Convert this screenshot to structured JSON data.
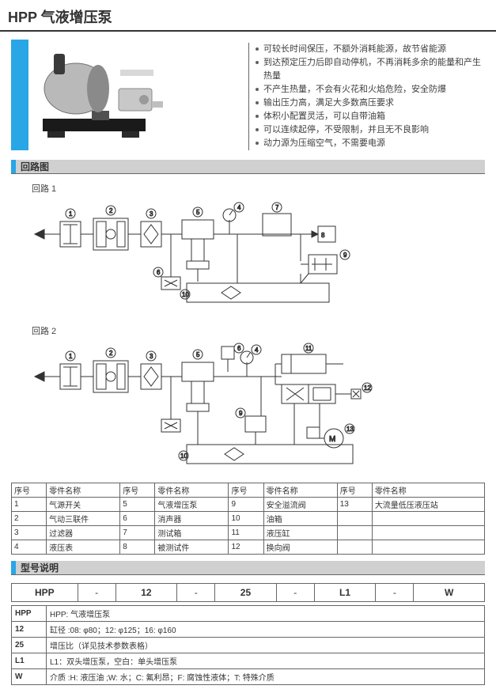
{
  "colors": {
    "accent": "#29a6e6",
    "stroke": "#333333",
    "grid": "#666666",
    "header_bg": "#d0d0d0",
    "text": "#404040"
  },
  "title": "HPP 气液增压泵",
  "features": [
    "可较长时间保压，不额外消耗能源，故节省能源",
    "到达预定压力后即自动停机，不再消耗多余的能量和产生热量",
    "不产生热量，不会有火花和火焰危险，安全防爆",
    "输出压力高，满足大多数高压要求",
    "体积小配置灵活，可以自带油箱",
    "可以连续起停，不受限制，并且无不良影响",
    "动力源为压缩空气，不需要电源"
  ],
  "section_circuit_title": "回路图",
  "circuit1_label": "回路 1",
  "circuit2_label": "回路 2",
  "parts_headers": [
    "序号",
    "零件名称",
    "序号",
    "零件名称",
    "序号",
    "零件名称",
    "序号",
    "零件名称"
  ],
  "parts_rows": [
    [
      "1",
      "气源开关",
      "5",
      "气液增压泵",
      "9",
      "安全溢流阀",
      "13",
      "大流量低压液压站"
    ],
    [
      "2",
      "气动三联件",
      "6",
      "消声器",
      "10",
      "油箱",
      "",
      ""
    ],
    [
      "3",
      "过滤器",
      "7",
      "测试箱",
      "11",
      "液压缸",
      "",
      ""
    ],
    [
      "4",
      "液压表",
      "8",
      "被测试件",
      "12",
      "换向阀",
      "",
      ""
    ]
  ],
  "section_model_title": "型号说明",
  "model_strip": [
    "HPP",
    "-",
    "12",
    "-",
    "25",
    "-",
    "L1",
    "-",
    "W"
  ],
  "explain_rows": [
    {
      "k": "HPP",
      "v": "HPP: 气液增压泵"
    },
    {
      "k": "12",
      "v": "缸径 :08: φ80；12: φ125；16: φ160"
    },
    {
      "k": "25",
      "v": "增压比（详见技术参数表格）"
    },
    {
      "k": "L1",
      "v": "L1：双头增压泵，空白：单头增压泵"
    },
    {
      "k": "W",
      "v": "介质 :H: 液压油 ;W: 水；C: 氟利昂；F: 腐蚀性液体；T: 特殊介质"
    }
  ]
}
